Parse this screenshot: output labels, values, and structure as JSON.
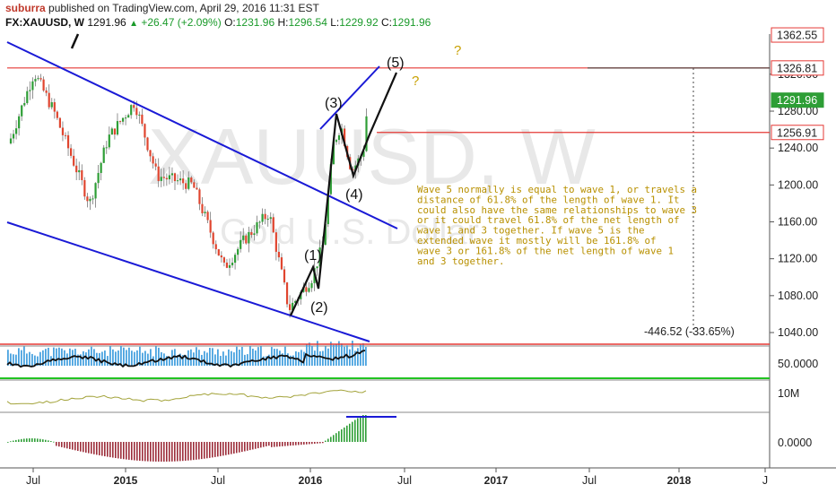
{
  "header": {
    "user": "suburra",
    "published": "published on TradingView.com, April 29, 2016 11:31 EST",
    "symbol": "FX:XAUUSD, W",
    "last": "1291.96",
    "change": "+26.47 (+2.09%)",
    "o_label": "O:",
    "o": "1231.96",
    "h_label": "H:",
    "h": "1296.54",
    "l_label": "L:",
    "l": "1229.92",
    "c_label": "C:",
    "c": "1291.96"
  },
  "watermark": {
    "symbol": "XAUUSD, W",
    "name": "Gold U.S. Dollar"
  },
  "chart_data": {
    "type": "candlestick",
    "x_ticks": [
      "Jul",
      "2015",
      "Jul",
      "2016",
      "Jul",
      "2017",
      "Jul",
      "2018",
      "J"
    ],
    "y_ticks": [
      "1040.00",
      "1080.00",
      "1120.00",
      "1160.00",
      "1200.00",
      "1240.00",
      "1280.00",
      "1320.00"
    ],
    "ylim": [
      1024,
      1364
    ],
    "price_tags": [
      {
        "value": 1362.55,
        "label": "1362.55",
        "color": "#e53935",
        "filled": false
      },
      {
        "value": 1326.81,
        "label": "1326.81",
        "color": "#e53935",
        "filled": false
      },
      {
        "value": 1291.96,
        "label": "1291.96",
        "color": "#2e9e36",
        "filled": true
      },
      {
        "value": 1256.91,
        "label": "1256.91",
        "color": "#e53935",
        "filled": false
      }
    ],
    "horizontal_lines": [
      1326.81,
      1256.91
    ],
    "measure_label": "-446.52 (-33.65%)",
    "wave_labels": [
      "(1)",
      "(2)",
      "(3)",
      "(4)",
      "(5)"
    ],
    "question_marks": [
      "?",
      "?"
    ],
    "annotation": [
      "Wave 5 normally is equal to wave 1, or travels a",
      "distance of 61.8% of the length of wave 1. It",
      "could also have the same relationships to wave 3",
      "or it could travel 61.8% of the net length of",
      "wave 1 and 3 together. If wave 5 is the",
      "extended wave it mostly will be 161.8% of",
      "wave 3 or 161.8% of the net length of wave 1",
      "and 3 together."
    ],
    "indicator1": {
      "tick": "50.0000"
    },
    "indicator2": {
      "tick": "10M"
    },
    "indicator3": {
      "tick": "0.0000"
    },
    "colors": {
      "up": "#2e9e36",
      "down": "#e0452f",
      "channel": "#1a1ad6",
      "hline": "#e53935"
    }
  }
}
